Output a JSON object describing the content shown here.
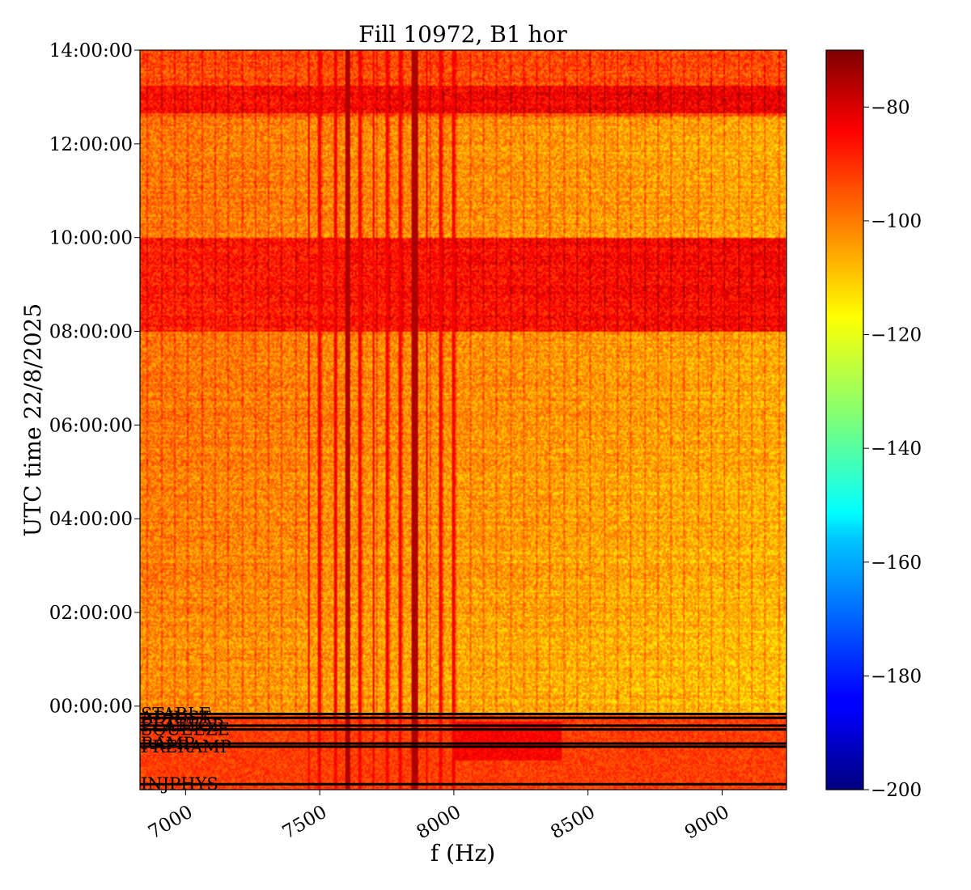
{
  "chart_data": {
    "type": "heatmap",
    "title": "Fill 10972, B1 hor",
    "xlabel": "f (Hz)",
    "ylabel": "UTC time 22/8/2025",
    "xlim": [
      6830,
      9240
    ],
    "ylim": [
      "22:13:00",
      "14:00:00"
    ],
    "x_ticks": [
      7000,
      7500,
      8000,
      8500,
      9000
    ],
    "x_tick_labels": [
      "7000",
      "7500",
      "8000",
      "8500",
      "9000"
    ],
    "y_ticks": [
      "00:00:00",
      "02:00:00",
      "04:00:00",
      "06:00:00",
      "08:00:00",
      "10:00:00",
      "12:00:00",
      "14:00:00"
    ],
    "y_tick_labels": [
      "00:00:00",
      "02:00:00",
      "04:00:00",
      "06:00:00",
      "08:00:00",
      "10:00:00",
      "12:00:00",
      "14:00:00"
    ],
    "colorbar": {
      "colormap": "jet",
      "vmin": -200,
      "vmax": -70,
      "ticks": [
        -80,
        -100,
        -120,
        -140,
        -160,
        -180,
        -200
      ],
      "tick_labels": [
        "−80",
        "−100",
        "−120",
        "−140",
        "−160",
        "−180",
        "−200"
      ]
    },
    "beam_mode_markers": [
      {
        "label": "STABLE",
        "time": "23:50:00"
      },
      {
        "label": "ADJUST",
        "time": "23:45:00"
      },
      {
        "label": "FLATTOP",
        "time": "23:35:00"
      },
      {
        "label": "SQUEEZE",
        "time": "23:30:00"
      },
      {
        "label": "RAMP",
        "time": "23:12:00"
      },
      {
        "label": "PRERAMP",
        "time": "23:08:00"
      },
      {
        "label": "INJPHYS",
        "time": "22:20:00"
      }
    ],
    "strong_lines_hz": [
      7600,
      7610,
      7850,
      7860
    ],
    "medium_lines_hz": [
      7560,
      7650,
      7700,
      7750,
      7800,
      7900,
      7500,
      7460,
      7950,
      8000
    ],
    "level_regions": [
      {
        "from": "08:00:00",
        "to": "10:00:00",
        "level_db": -90
      },
      {
        "from": "12:40:00",
        "to": "13:15:00",
        "level_db": -88
      }
    ]
  }
}
